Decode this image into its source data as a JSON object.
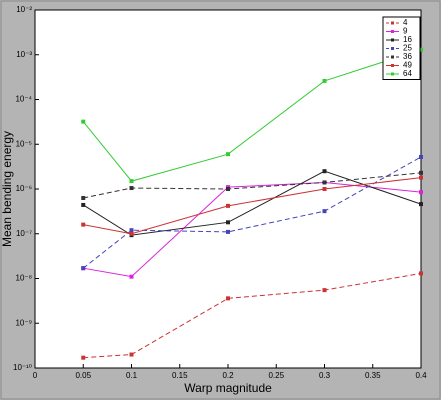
{
  "chart_data": {
    "type": "line",
    "x_label": "Warp magnitude",
    "y_label": "Mean bending energy",
    "x": [
      0.05,
      0.1,
      0.2,
      0.3,
      0.4
    ],
    "series": [
      {
        "name": "4",
        "color": "#cc3333",
        "dashed": true,
        "values": [
          1.7e-10,
          2e-10,
          3.6e-09,
          5.5e-09,
          1.3e-08
        ]
      },
      {
        "name": "9",
        "color": "#dd22dd",
        "dashed": false,
        "values": [
          1.7e-08,
          1.1e-08,
          1.1e-06,
          1.4e-06,
          8.5e-07
        ]
      },
      {
        "name": "16",
        "color": "#222222",
        "dashed": false,
        "values": [
          4.4e-07,
          9.3e-08,
          1.8e-07,
          2.5e-06,
          4.6e-07
        ]
      },
      {
        "name": "25",
        "color": "#4444bb",
        "dashed": true,
        "values": [
          1.7e-08,
          1.2e-07,
          1.1e-07,
          3.2e-07,
          5.2e-06
        ]
      },
      {
        "name": "36",
        "color": "#333333",
        "dashed": true,
        "values": [
          6.3e-07,
          1.05e-06,
          1e-06,
          1.4e-06,
          2.3e-06
        ]
      },
      {
        "name": "49",
        "color": "#cc3333",
        "dashed": false,
        "values": [
          1.6e-07,
          1e-07,
          4.2e-07,
          1e-06,
          1.8e-06
        ]
      },
      {
        "name": "64",
        "color": "#33cc33",
        "dashed": false,
        "values": [
          3.2e-05,
          1.5e-06,
          6e-06,
          0.00026,
          0.0013
        ]
      }
    ],
    "xlim": [
      0,
      0.4
    ],
    "xticks": [
      0,
      0.05,
      0.1,
      0.15,
      0.2,
      0.25,
      0.3,
      0.35,
      0.4
    ],
    "ylim": [
      1e-10,
      0.01
    ],
    "y_scale": "log",
    "yticks": [
      {
        "value": 1e-10,
        "label": "10⁻¹⁰"
      },
      {
        "value": 1e-09,
        "label": "10⁻⁹"
      },
      {
        "value": 1e-08,
        "label": "10⁻⁸"
      },
      {
        "value": 1e-07,
        "label": "10⁻⁷"
      },
      {
        "value": 1e-06,
        "label": "10⁻⁶"
      },
      {
        "value": 1e-05,
        "label": "10⁻⁵"
      },
      {
        "value": 0.0001,
        "label": "10⁻⁴"
      },
      {
        "value": 0.001,
        "label": "10⁻³"
      },
      {
        "value": 0.01,
        "label": "10⁻²"
      }
    ],
    "legend": "top-right"
  }
}
